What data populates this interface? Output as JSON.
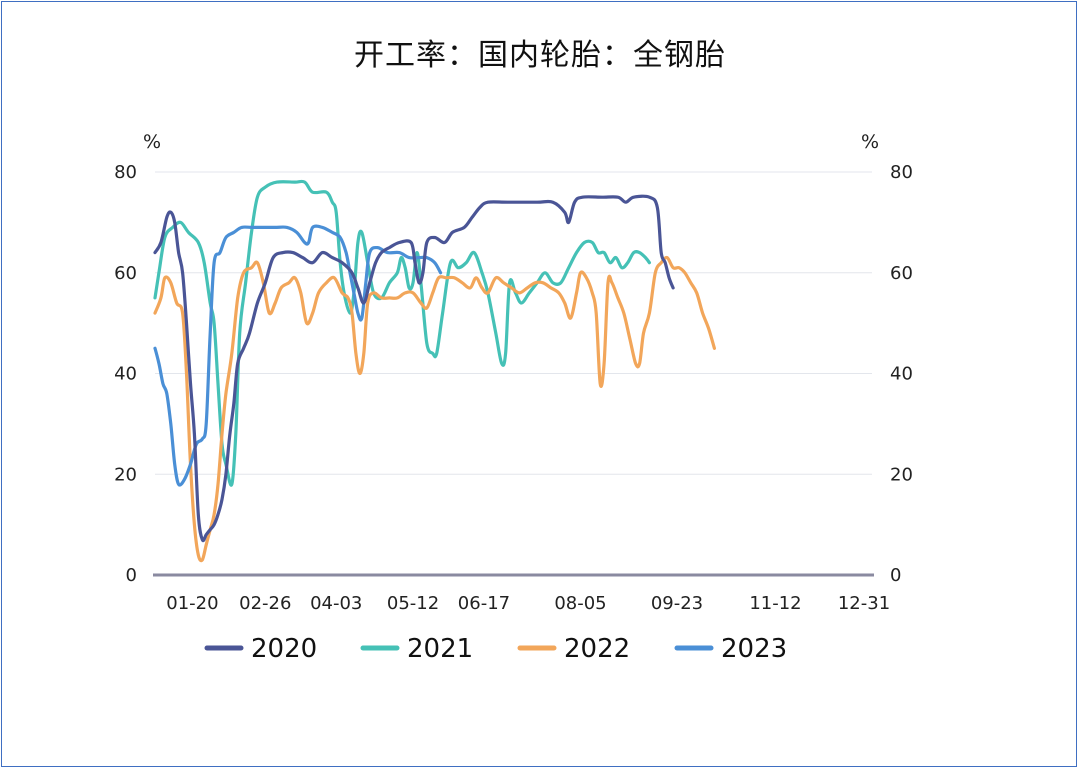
{
  "chart_data": {
    "type": "line",
    "title": "开工率：国内轮胎：全钢胎",
    "y_unit_left": "%",
    "y_unit_right": "%",
    "ylim": [
      0,
      80
    ],
    "y_ticks": [
      "0",
      "20",
      "40",
      "60",
      "80"
    ],
    "x_tick_labels": [
      "01-20",
      "02-26",
      "04-03",
      "05-12",
      "06-17",
      "08-05",
      "09-23",
      "11-12",
      "12-31"
    ],
    "x_tick_days": [
      20,
      57,
      93,
      132,
      168,
      217,
      266,
      316,
      365
    ],
    "grid": true,
    "legend_position": "bottom",
    "colors": {
      "2020": "#4a5596",
      "2021": "#45c1b6",
      "2022": "#f2a65a",
      "2023": "#4a8fd6"
    },
    "series": [
      {
        "name": "2020",
        "color": "#4a5596",
        "points": [
          [
            1,
            64
          ],
          [
            4,
            66
          ],
          [
            7,
            71
          ],
          [
            9,
            72
          ],
          [
            11,
            70
          ],
          [
            13,
            64
          ],
          [
            15,
            60
          ],
          [
            17,
            50
          ],
          [
            19,
            38
          ],
          [
            21,
            28
          ],
          [
            23,
            12
          ],
          [
            25,
            7
          ],
          [
            27,
            8
          ],
          [
            29,
            9
          ],
          [
            31,
            10
          ],
          [
            33,
            12
          ],
          [
            35,
            15
          ],
          [
            37,
            20
          ],
          [
            39,
            28
          ],
          [
            41,
            34
          ],
          [
            43,
            42
          ],
          [
            46,
            45
          ],
          [
            49,
            48
          ],
          [
            53,
            54
          ],
          [
            57,
            58
          ],
          [
            61,
            63
          ],
          [
            66,
            64
          ],
          [
            71,
            64
          ],
          [
            76,
            63
          ],
          [
            81,
            62
          ],
          [
            86,
            64
          ],
          [
            91,
            63
          ],
          [
            96,
            62
          ],
          [
            101,
            60
          ],
          [
            104,
            57
          ],
          [
            107,
            54
          ],
          [
            110,
            58
          ],
          [
            113,
            62
          ],
          [
            116,
            64
          ],
          [
            120,
            65
          ],
          [
            125,
            66
          ],
          [
            131,
            66
          ],
          [
            133,
            62
          ],
          [
            135,
            58
          ],
          [
            137,
            60
          ],
          [
            139,
            66
          ],
          [
            143,
            67
          ],
          [
            148,
            66
          ],
          [
            152,
            68
          ],
          [
            158,
            69
          ],
          [
            162,
            71
          ],
          [
            166,
            73
          ],
          [
            170,
            74
          ],
          [
            180,
            74
          ],
          [
            195,
            74
          ],
          [
            203,
            74
          ],
          [
            209,
            72
          ],
          [
            211,
            70
          ],
          [
            214,
            74
          ],
          [
            218,
            75
          ],
          [
            228,
            75
          ],
          [
            236,
            75
          ],
          [
            240,
            74
          ],
          [
            244,
            75
          ],
          [
            252,
            75
          ],
          [
            256,
            73
          ],
          [
            258,
            64
          ],
          [
            260,
            62
          ],
          [
            262,
            59
          ],
          [
            264,
            57
          ]
        ]
      },
      {
        "name": "2021",
        "color": "#45c1b6",
        "points": [
          [
            1,
            55
          ],
          [
            3,
            60
          ],
          [
            6,
            67
          ],
          [
            10,
            69
          ],
          [
            14,
            70
          ],
          [
            18,
            68
          ],
          [
            23,
            66
          ],
          [
            26,
            62
          ],
          [
            29,
            54
          ],
          [
            31,
            50
          ],
          [
            33,
            38
          ],
          [
            35,
            26
          ],
          [
            37,
            22
          ],
          [
            40,
            18
          ],
          [
            42,
            28
          ],
          [
            44,
            48
          ],
          [
            47,
            58
          ],
          [
            50,
            68
          ],
          [
            53,
            75
          ],
          [
            57,
            77
          ],
          [
            63,
            78
          ],
          [
            72,
            78
          ],
          [
            77,
            78
          ],
          [
            81,
            76
          ],
          [
            88,
            76
          ],
          [
            91,
            74
          ],
          [
            93,
            72
          ],
          [
            95,
            62
          ],
          [
            97,
            56
          ],
          [
            100,
            52
          ],
          [
            102,
            56
          ],
          [
            104,
            66
          ],
          [
            106,
            68
          ],
          [
            109,
            62
          ],
          [
            112,
            56
          ],
          [
            116,
            55
          ],
          [
            120,
            58
          ],
          [
            124,
            60
          ],
          [
            126,
            63
          ],
          [
            128,
            61
          ],
          [
            130,
            57
          ],
          [
            132,
            58
          ],
          [
            134,
            64
          ],
          [
            136,
            58
          ],
          [
            139,
            46
          ],
          [
            142,
            44
          ],
          [
            144,
            44
          ],
          [
            147,
            52
          ],
          [
            151,
            62
          ],
          [
            155,
            61
          ],
          [
            159,
            62
          ],
          [
            163,
            64
          ],
          [
            167,
            60
          ],
          [
            170,
            56
          ],
          [
            174,
            48
          ],
          [
            177,
            42
          ],
          [
            179,
            44
          ],
          [
            181,
            58
          ],
          [
            184,
            56
          ],
          [
            187,
            54
          ],
          [
            191,
            56
          ],
          [
            195,
            58
          ],
          [
            199,
            60
          ],
          [
            203,
            58
          ],
          [
            207,
            58
          ],
          [
            211,
            61
          ],
          [
            215,
            64
          ],
          [
            219,
            66
          ],
          [
            223,
            66
          ],
          [
            226,
            64
          ],
          [
            229,
            64
          ],
          [
            232,
            62
          ],
          [
            235,
            63
          ],
          [
            238,
            61
          ],
          [
            241,
            62
          ],
          [
            244,
            64
          ],
          [
            247,
            64
          ],
          [
            250,
            63
          ],
          [
            252,
            62
          ]
        ]
      },
      {
        "name": "2022",
        "color": "#f2a65a",
        "points": [
          [
            1,
            52
          ],
          [
            4,
            55
          ],
          [
            6,
            59
          ],
          [
            9,
            58
          ],
          [
            12,
            54
          ],
          [
            15,
            52
          ],
          [
            17,
            40
          ],
          [
            19,
            22
          ],
          [
            21,
            10
          ],
          [
            23,
            4
          ],
          [
            25,
            3
          ],
          [
            27,
            6
          ],
          [
            29,
            9
          ],
          [
            31,
            12
          ],
          [
            33,
            18
          ],
          [
            35,
            28
          ],
          [
            37,
            36
          ],
          [
            40,
            44
          ],
          [
            43,
            55
          ],
          [
            46,
            60
          ],
          [
            50,
            61
          ],
          [
            53,
            62
          ],
          [
            56,
            58
          ],
          [
            59,
            52
          ],
          [
            62,
            54
          ],
          [
            65,
            57
          ],
          [
            69,
            58
          ],
          [
            72,
            59
          ],
          [
            75,
            56
          ],
          [
            78,
            50
          ],
          [
            81,
            52
          ],
          [
            84,
            56
          ],
          [
            88,
            58
          ],
          [
            92,
            59
          ],
          [
            96,
            56
          ],
          [
            99,
            55
          ],
          [
            101,
            52
          ],
          [
            103,
            44
          ],
          [
            105,
            40
          ],
          [
            107,
            44
          ],
          [
            109,
            54
          ],
          [
            112,
            56
          ],
          [
            116,
            55
          ],
          [
            120,
            55
          ],
          [
            124,
            55
          ],
          [
            128,
            56
          ],
          [
            132,
            56
          ],
          [
            136,
            54
          ],
          [
            139,
            53
          ],
          [
            142,
            56
          ],
          [
            145,
            59
          ],
          [
            149,
            59
          ],
          [
            153,
            59
          ],
          [
            157,
            58
          ],
          [
            161,
            57
          ],
          [
            164,
            59
          ],
          [
            167,
            57
          ],
          [
            170,
            56
          ],
          [
            174,
            59
          ],
          [
            178,
            58
          ],
          [
            182,
            57
          ],
          [
            186,
            56
          ],
          [
            190,
            57
          ],
          [
            194,
            58
          ],
          [
            198,
            58
          ],
          [
            202,
            57
          ],
          [
            206,
            56
          ],
          [
            209,
            54
          ],
          [
            212,
            51
          ],
          [
            215,
            56
          ],
          [
            217,
            60
          ],
          [
            220,
            59
          ],
          [
            223,
            56
          ],
          [
            225,
            52
          ],
          [
            227,
            38
          ],
          [
            229,
            42
          ],
          [
            231,
            58
          ],
          [
            233,
            58
          ],
          [
            236,
            55
          ],
          [
            239,
            52
          ],
          [
            242,
            47
          ],
          [
            245,
            42
          ],
          [
            247,
            42
          ],
          [
            249,
            48
          ],
          [
            252,
            52
          ],
          [
            255,
            60
          ],
          [
            258,
            62
          ],
          [
            261,
            63
          ],
          [
            264,
            61
          ],
          [
            267,
            61
          ],
          [
            270,
            60
          ],
          [
            273,
            58
          ],
          [
            276,
            56
          ],
          [
            279,
            52
          ],
          [
            282,
            49
          ],
          [
            285,
            45
          ]
        ]
      },
      {
        "name": "2023",
        "color": "#4a8fd6",
        "points": [
          [
            1,
            45
          ],
          [
            3,
            42
          ],
          [
            5,
            38
          ],
          [
            7,
            36
          ],
          [
            9,
            30
          ],
          [
            11,
            22
          ],
          [
            13,
            18
          ],
          [
            16,
            19
          ],
          [
            19,
            22
          ],
          [
            22,
            26
          ],
          [
            25,
            27
          ],
          [
            27,
            30
          ],
          [
            29,
            48
          ],
          [
            31,
            62
          ],
          [
            34,
            64
          ],
          [
            37,
            67
          ],
          [
            41,
            68
          ],
          [
            45,
            69
          ],
          [
            50,
            69
          ],
          [
            56,
            69
          ],
          [
            62,
            69
          ],
          [
            68,
            69
          ],
          [
            73,
            68
          ],
          [
            77,
            66
          ],
          [
            79,
            66
          ],
          [
            81,
            69
          ],
          [
            86,
            69
          ],
          [
            91,
            68
          ],
          [
            95,
            67
          ],
          [
            98,
            64
          ],
          [
            100,
            60
          ],
          [
            102,
            56
          ],
          [
            104,
            52
          ],
          [
            106,
            51
          ],
          [
            108,
            58
          ],
          [
            110,
            64
          ],
          [
            114,
            65
          ],
          [
            119,
            64
          ],
          [
            125,
            64
          ],
          [
            130,
            63
          ],
          [
            135,
            63
          ],
          [
            139,
            63
          ],
          [
            143,
            62
          ],
          [
            146,
            60
          ]
        ]
      }
    ]
  },
  "legend": [
    {
      "label": "2020",
      "color": "#4a5596"
    },
    {
      "label": "2021",
      "color": "#45c1b6"
    },
    {
      "label": "2022",
      "color": "#f2a65a"
    },
    {
      "label": "2023",
      "color": "#4a8fd6"
    }
  ]
}
